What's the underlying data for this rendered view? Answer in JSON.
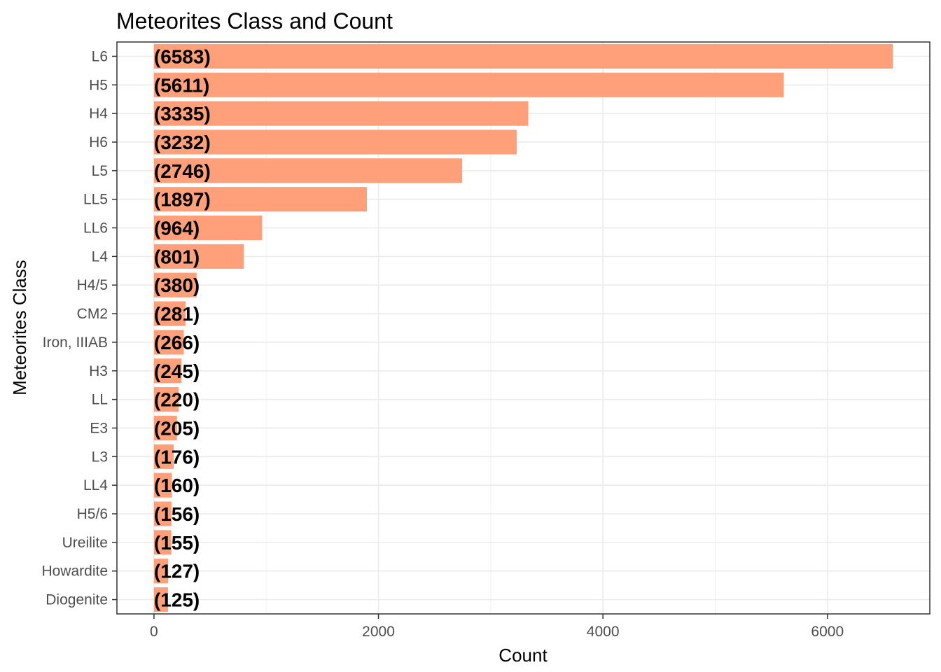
{
  "chart_data": {
    "type": "bar",
    "orientation": "horizontal",
    "title": "Meteorites Class and Count",
    "xlabel": "Count",
    "ylabel": "Meteorites Class",
    "categories": [
      "L6",
      "H5",
      "H4",
      "H6",
      "L5",
      "LL5",
      "LL6",
      "L4",
      "H4/5",
      "CM2",
      "Iron, IIIAB",
      "H3",
      "LL",
      "E3",
      "L3",
      "LL4",
      "H5/6",
      "Ureilite",
      "Howardite",
      "Diogenite"
    ],
    "values": [
      6583,
      5611,
      3335,
      3232,
      2746,
      1897,
      964,
      801,
      380,
      281,
      266,
      245,
      220,
      205,
      176,
      160,
      156,
      155,
      127,
      125
    ],
    "data_labels": [
      "(6583)",
      "(5611)",
      "(3335)",
      "(3232)",
      "(2746)",
      "(1897)",
      "(964)",
      "(801)",
      "(380)",
      "(281)",
      "(266)",
      "(245)",
      "(220)",
      "(205)",
      "(176)",
      "(160)",
      "(156)",
      "(155)",
      "(127)",
      "(125)"
    ],
    "xticks": [
      0,
      2000,
      4000,
      6000
    ],
    "xlim": [
      -330,
      6912
    ],
    "bar_color": "#FFA07A",
    "grid": true,
    "theme": "bw"
  }
}
